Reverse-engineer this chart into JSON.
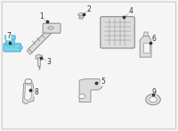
{
  "bg_color": "#f5f5f5",
  "border_color": "#cccccc",
  "highlight_color": "#4db8d4",
  "highlight_fill": "#7dd4e8",
  "line_color": "#aaaaaa",
  "part_color": "#dddddd",
  "part_edge": "#888888",
  "label_color": "#333333",
  "label_fontsize": 5.5
}
